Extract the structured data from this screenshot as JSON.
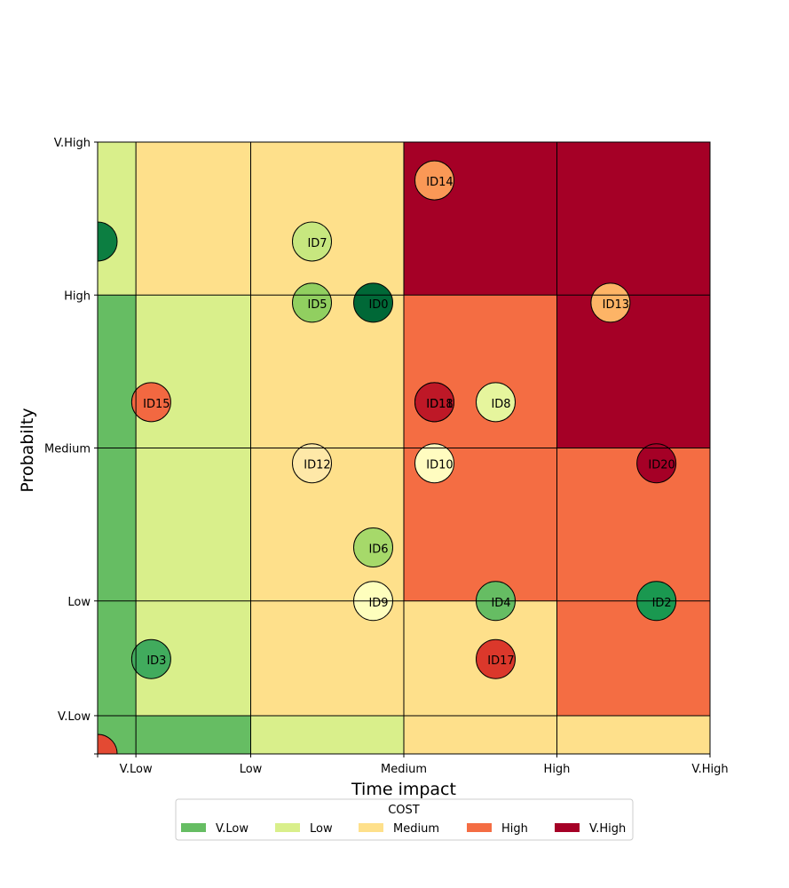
{
  "chart_data": {
    "type": "scatter",
    "subtype": "risk-matrix-bubble",
    "title": "",
    "xlabel": "Time impact",
    "ylabel": "Probabilty",
    "x_ticks": [
      {
        "value": 0,
        "label": ""
      },
      {
        "value": 0.25,
        "label": "V.Low"
      },
      {
        "value": 1,
        "label": "Low"
      },
      {
        "value": 2,
        "label": "Medium"
      },
      {
        "value": 3,
        "label": "High"
      },
      {
        "value": 4,
        "label": "V.High"
      }
    ],
    "y_ticks": [
      {
        "value": 0,
        "label": ""
      },
      {
        "value": 0.25,
        "label": "V.Low"
      },
      {
        "value": 1,
        "label": "Low"
      },
      {
        "value": 2,
        "label": "Medium"
      },
      {
        "value": 3,
        "label": "High"
      },
      {
        "value": 4,
        "label": "V.High"
      }
    ],
    "xlim": [
      0,
      4
    ],
    "ylim": [
      0,
      4
    ],
    "x_breaks": [
      0,
      0.25,
      1,
      2,
      3,
      4
    ],
    "y_breaks": [
      0,
      0.25,
      1,
      2,
      3,
      4
    ],
    "grid": true,
    "level_colors": {
      "V.Low": "#66bd63",
      "Low": "#d9ef8b",
      "Medium": "#fee08b",
      "High": "#f46d43",
      "V.High": "#a50026"
    },
    "cell_levels": [
      [
        "V.Low",
        "V.Low",
        "Low",
        "Medium",
        "Medium"
      ],
      [
        "V.Low",
        "Low",
        "Medium",
        "Medium",
        "High"
      ],
      [
        "V.Low",
        "Low",
        "Medium",
        "High",
        "High"
      ],
      [
        "V.Low",
        "Low",
        "Medium",
        "High",
        "V.High"
      ],
      [
        "Low",
        "Medium",
        "Medium",
        "V.High",
        "V.High"
      ]
    ],
    "points": [
      {
        "id": "ID0",
        "x": 1.8,
        "y": 2.95,
        "color": "#006837"
      },
      {
        "id": "ID1",
        "x": 0.0,
        "y": 0.0,
        "color": "#e34a33"
      },
      {
        "id": "ID2",
        "x": 3.65,
        "y": 1.0,
        "color": "#1a9850"
      },
      {
        "id": "ID3",
        "x": 0.35,
        "y": 0.62,
        "color": "#41ab5d"
      },
      {
        "id": "ID4",
        "x": 2.6,
        "y": 1.0,
        "color": "#66bd63"
      },
      {
        "id": "ID5",
        "x": 1.4,
        "y": 2.95,
        "color": "#91cf60"
      },
      {
        "id": "ID6",
        "x": 1.8,
        "y": 1.35,
        "color": "#a6d96a"
      },
      {
        "id": "ID7",
        "x": 1.4,
        "y": 3.35,
        "color": "#c7e77f"
      },
      {
        "id": "ID8",
        "x": 2.6,
        "y": 2.3,
        "color": "#e6f59d"
      },
      {
        "id": "ID9",
        "x": 1.8,
        "y": 1.0,
        "color": "#fefebd"
      },
      {
        "id": "ID10",
        "x": 2.2,
        "y": 1.9,
        "color": "#fffcc0"
      },
      {
        "id": "ID11",
        "x": 2.2,
        "y": 2.3,
        "color": "#d73027"
      },
      {
        "id": "ID12",
        "x": 1.4,
        "y": 1.9,
        "color": "#fee8a8"
      },
      {
        "id": "ID13",
        "x": 3.35,
        "y": 2.95,
        "color": "#fdb466"
      },
      {
        "id": "ID14",
        "x": 2.2,
        "y": 3.75,
        "color": "#fa9856"
      },
      {
        "id": "ID15",
        "x": 0.35,
        "y": 2.3,
        "color": "#f26841"
      },
      {
        "id": "ID16",
        "x": 0.0,
        "y": 3.35,
        "color": "#0c7e41"
      },
      {
        "id": "ID17",
        "x": 2.6,
        "y": 0.62,
        "color": "#db382b"
      },
      {
        "id": "ID18",
        "x": 2.2,
        "y": 2.3,
        "color": "#be1827"
      },
      {
        "id": "ID20",
        "x": 3.65,
        "y": 1.9,
        "color": "#a50026"
      }
    ],
    "visible_labels": [
      {
        "text": "ID0",
        "x": 1.8,
        "y": 2.95
      },
      {
        "text": "ID2",
        "x": 3.65,
        "y": 1.0
      },
      {
        "text": "ID3",
        "x": 0.35,
        "y": 0.62
      },
      {
        "text": "ID4",
        "x": 2.6,
        "y": 1.0
      },
      {
        "text": "ID5",
        "x": 1.4,
        "y": 2.95
      },
      {
        "text": "ID6",
        "x": 1.8,
        "y": 1.35
      },
      {
        "text": "ID7",
        "x": 1.4,
        "y": 3.35
      },
      {
        "text": "ID8",
        "x": 2.6,
        "y": 2.3
      },
      {
        "text": "ID9",
        "x": 1.8,
        "y": 1.0
      },
      {
        "text": "ID10",
        "x": 2.2,
        "y": 1.9
      },
      {
        "text": "ID11",
        "x": 2.2,
        "y": 2.3
      },
      {
        "text": "ID12",
        "x": 1.4,
        "y": 1.9
      },
      {
        "text": "ID13",
        "x": 3.35,
        "y": 2.95
      },
      {
        "text": "ID14",
        "x": 2.2,
        "y": 3.75
      },
      {
        "text": "ID15",
        "x": 0.35,
        "y": 2.3
      },
      {
        "text": "ID17",
        "x": 2.6,
        "y": 0.62
      },
      {
        "text": "ID18",
        "x": 2.2,
        "y": 2.3
      },
      {
        "text": "ID20",
        "x": 3.65,
        "y": 1.9
      }
    ],
    "legend": {
      "title": "COST",
      "position": "bottom-center",
      "entries": [
        {
          "label": "V.Low",
          "color": "#66bd63"
        },
        {
          "label": "Low",
          "color": "#d9ef8b"
        },
        {
          "label": "Medium",
          "color": "#fee08b"
        },
        {
          "label": "High",
          "color": "#f46d43"
        },
        {
          "label": "V.High",
          "color": "#a50026"
        }
      ]
    }
  }
}
